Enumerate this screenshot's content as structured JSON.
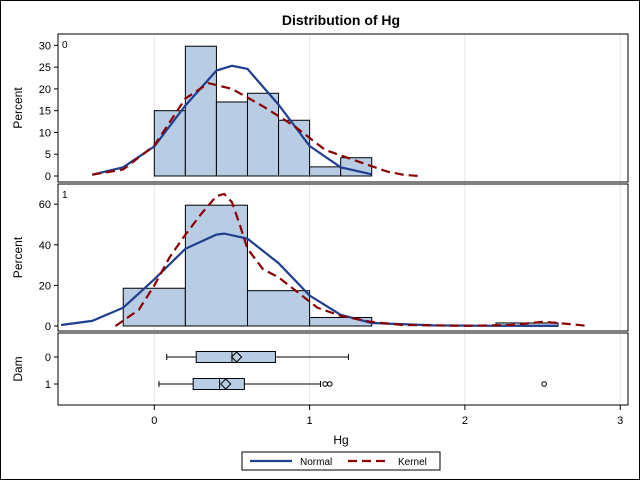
{
  "chart_data": {
    "type": "bar",
    "title": "Distribution of Hg",
    "xlabel": "Hg",
    "xlim": [
      -0.62,
      3.05
    ],
    "xticks": [
      0,
      1,
      2,
      3
    ],
    "grid": "vertical",
    "panels": [
      {
        "label": "0",
        "ylabel": "Percent",
        "ylim": [
          0,
          31
        ],
        "yticks": [
          0,
          5,
          10,
          15,
          20,
          25,
          30
        ],
        "bars": [
          {
            "x0": 0.0,
            "x1": 0.2,
            "value": 15.0
          },
          {
            "x0": 0.2,
            "x1": 0.4,
            "value": 29.8
          },
          {
            "x0": 0.4,
            "x1": 0.6,
            "value": 17.0
          },
          {
            "x0": 0.6,
            "x1": 0.8,
            "value": 19.0
          },
          {
            "x0": 0.8,
            "x1": 1.0,
            "value": 12.8
          },
          {
            "x0": 1.0,
            "x1": 1.2,
            "value": 2.1
          },
          {
            "x0": 1.2,
            "x1": 1.4,
            "value": 4.2
          }
        ],
        "normal": {
          "x": [
            -0.4,
            -0.2,
            0.0,
            0.2,
            0.4,
            0.5,
            0.6,
            0.8,
            1.0,
            1.2,
            1.4
          ],
          "y": [
            0.3,
            2.0,
            6.8,
            16.2,
            24.2,
            25.3,
            24.6,
            16.4,
            6.9,
            2.0,
            0.4
          ]
        },
        "kernel": {
          "x": [
            -0.4,
            -0.2,
            0.0,
            0.2,
            0.35,
            0.5,
            0.7,
            0.9,
            1.1,
            1.3,
            1.5,
            1.6,
            1.7
          ],
          "y": [
            0.3,
            1.5,
            7.0,
            17.8,
            21.3,
            20.0,
            16.0,
            11.5,
            6.0,
            3.5,
            1.0,
            0.3,
            0.0
          ]
        }
      },
      {
        "label": "1",
        "ylabel": "Percent",
        "ylim": [
          0,
          66
        ],
        "yticks": [
          0,
          20,
          40,
          60
        ],
        "bars": [
          {
            "x0": -0.2,
            "x1": 0.2,
            "value": 18.6
          },
          {
            "x0": 0.2,
            "x1": 0.6,
            "value": 59.5
          },
          {
            "x0": 0.6,
            "x1": 1.0,
            "value": 17.4
          },
          {
            "x0": 1.0,
            "x1": 1.4,
            "value": 4.2
          },
          {
            "x0": 2.2,
            "x1": 2.6,
            "value": 1.5
          }
        ],
        "normal": {
          "x": [
            -0.6,
            -0.4,
            -0.2,
            0.0,
            0.2,
            0.4,
            0.45,
            0.6,
            0.8,
            1.0,
            1.2,
            1.4,
            1.8,
            2.2,
            2.6
          ],
          "y": [
            0.5,
            2.5,
            9.0,
            23.0,
            38.0,
            45.0,
            45.5,
            43.0,
            31.0,
            15.0,
            5.5,
            1.5,
            0.3,
            0.1,
            0.05
          ]
        },
        "kernel": {
          "x": [
            -0.25,
            -0.1,
            0.0,
            0.1,
            0.2,
            0.3,
            0.4,
            0.45,
            0.5,
            0.55,
            0.6,
            0.7,
            0.8,
            0.95,
            1.05,
            1.2,
            1.4,
            1.6,
            2.0,
            2.3,
            2.5,
            2.6,
            2.8
          ],
          "y": [
            0.0,
            8.0,
            20.0,
            34.0,
            45.0,
            55.0,
            64.0,
            65.0,
            61.0,
            50.0,
            38.0,
            28.0,
            24.0,
            15.0,
            9.0,
            5.0,
            2.0,
            0.5,
            0.1,
            0.5,
            2.0,
            1.5,
            0.0
          ]
        }
      }
    ],
    "boxplot": {
      "ylabel": "Dam",
      "categories": [
        "0",
        "1"
      ],
      "boxes": [
        {
          "category": "0",
          "whisker_low": 0.08,
          "q1": 0.27,
          "median": 0.5,
          "mean": 0.53,
          "q3": 0.78,
          "whisker_high": 1.25,
          "outliers": []
        },
        {
          "category": "1",
          "whisker_low": 0.03,
          "q1": 0.25,
          "median": 0.42,
          "mean": 0.46,
          "q3": 0.58,
          "whisker_high": 1.07,
          "outliers": [
            1.1,
            1.13,
            2.51
          ]
        }
      ]
    },
    "legend": {
      "placement": "bottom",
      "entries": [
        {
          "label": "Normal",
          "color": "#1f3f8f",
          "style": "solid"
        },
        {
          "label": "Kernel",
          "color": "#8b0000",
          "style": "dashed"
        }
      ]
    },
    "colors": {
      "bar_fill": "#b8cce4",
      "bar_stroke": "#000000",
      "box_fill": "#b8cce4",
      "normal": "#1f3f8f",
      "kernel": "#8b0000",
      "grid": "#e6e6e6"
    }
  }
}
